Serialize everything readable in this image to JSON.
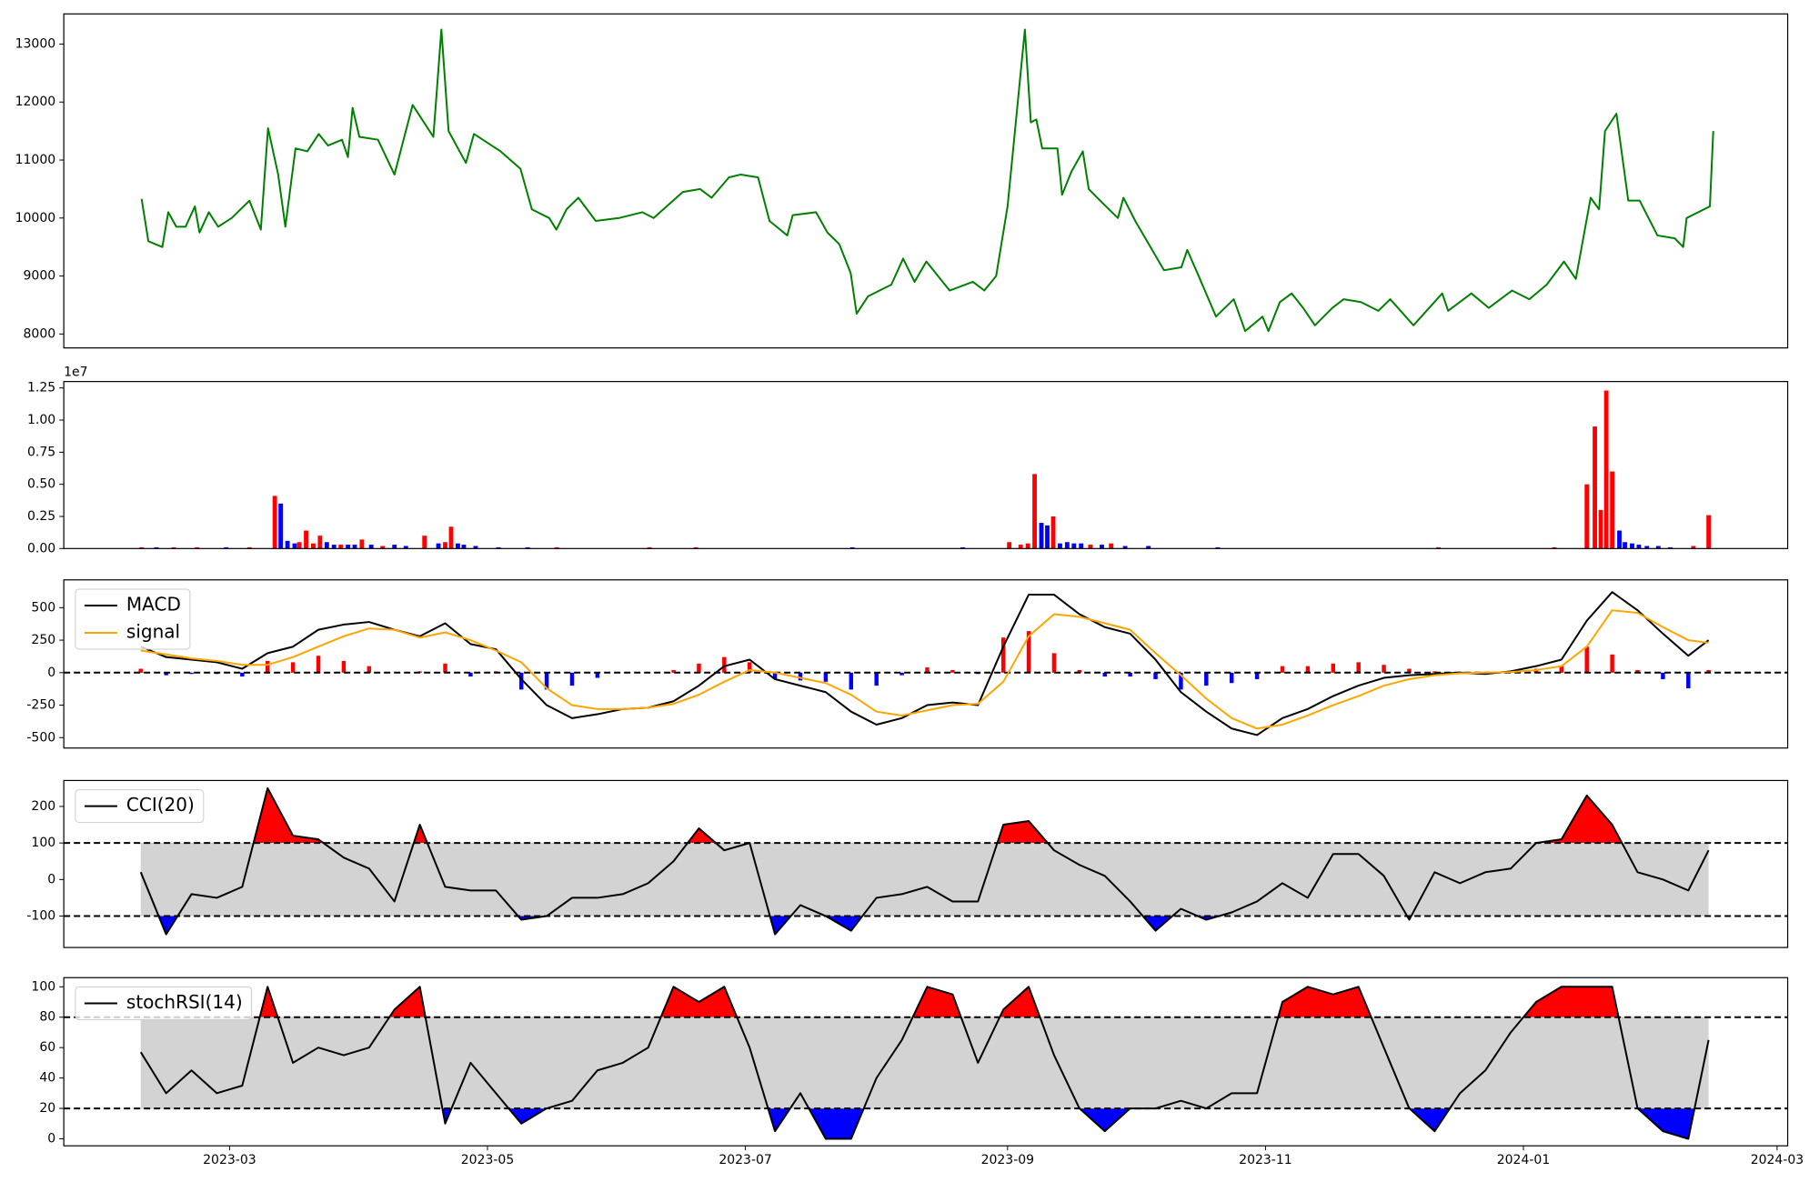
{
  "chart_data": [
    {
      "type": "line",
      "xlim": [
        19.8,
        427.5
      ],
      "ylim": [
        7760,
        13520
      ],
      "yticks": [
        8000,
        9000,
        10000,
        11000,
        12000,
        13000
      ],
      "x": [
        38.2,
        39.8,
        43.1,
        44.5,
        46.4,
        48.6,
        50.8,
        51.9,
        54.1,
        56.3,
        59.5,
        63.7,
        66.4,
        68.1,
        70.5,
        72.2,
        74.6,
        77.4,
        80.1,
        82.3,
        85.6,
        87.0,
        88.1,
        89.7,
        94.1,
        98.0,
        102.3,
        107.2,
        109.1,
        110.8,
        114.9,
        116.8,
        123.1,
        127.8,
        130.5,
        134.6,
        136.3,
        138.7,
        141.5,
        145.6,
        151.1,
        156.6,
        159.3,
        166.2,
        170.3,
        173.0,
        177.1,
        179.9,
        184.0,
        186.7,
        190.9,
        192.2,
        197.7,
        200.4,
        203.2,
        205.9,
        207.3,
        210.0,
        215.5,
        218.3,
        221.0,
        223.8,
        229.3,
        234.8,
        237.5,
        240.3,
        243.0,
        247.1,
        248.5,
        249.8,
        251.2,
        254.8,
        255.9,
        258.1,
        260.8,
        262.2,
        264.9,
        269.1,
        270.4,
        273.2,
        277.2,
        280.0,
        284.1,
        285.5,
        288.2,
        292.3,
        296.5,
        299.2,
        303.3,
        304.7,
        307.4,
        310.2,
        312.9,
        315.7,
        319.8,
        322.5,
        326.6,
        330.7,
        333.5,
        339.0,
        345.8,
        347.2,
        352.7,
        356.8,
        362.3,
        366.4,
        370.5,
        374.6,
        377.4,
        380.9,
        382.9,
        384.3,
        387.0,
        388.4,
        389.8,
        392.5,
        396.7,
        400.8,
        402.8,
        403.6,
        409.1,
        409.9
      ],
      "series": [
        {
          "color": "#008000",
          "values": [
            10330,
            9600,
            9500,
            10100,
            9850,
            9850,
            10200,
            9750,
            10100,
            9850,
            10000,
            10300,
            9800,
            11550,
            10750,
            9850,
            11200,
            11150,
            11450,
            11250,
            11350,
            11050,
            11900,
            11400,
            11350,
            10750,
            11950,
            11400,
            13250,
            11500,
            10950,
            11450,
            11150,
            10850,
            10150,
            10000,
            9800,
            10150,
            10350,
            9950,
            10000,
            10100,
            10000,
            10450,
            10500,
            10350,
            10700,
            10750,
            10700,
            9950,
            9700,
            10050,
            10100,
            9750,
            9550,
            9050,
            8350,
            8650,
            8850,
            9300,
            8900,
            9250,
            8750,
            8900,
            8750,
            9000,
            10200,
            13250,
            11650,
            11700,
            11200,
            11200,
            10400,
            10800,
            11150,
            10500,
            10300,
            10000,
            10350,
            9950,
            9450,
            9100,
            9150,
            9450,
            9000,
            8300,
            8600,
            8050,
            8300,
            8050,
            8550,
            8700,
            8450,
            8150,
            8450,
            8600,
            8550,
            8400,
            8600,
            8150,
            8700,
            8400,
            8700,
            8450,
            8750,
            8600,
            8850,
            9250,
            8950,
            10350,
            10150,
            11500,
            11800,
            11050,
            10300,
            10300,
            9700,
            9650,
            9500,
            10000,
            10200,
            11500
          ]
        }
      ]
    },
    {
      "type": "bar",
      "xlim": [
        19.8,
        427.5
      ],
      "ylim": [
        0,
        13000000
      ],
      "offset_text": "1e7",
      "yticks": [
        {
          "value": 0,
          "label": "0.00"
        },
        {
          "value": 2500000,
          "label": "0.25"
        },
        {
          "value": 5000000,
          "label": "0.50"
        },
        {
          "value": 7500000,
          "label": "0.75"
        },
        {
          "value": 10000000,
          "label": "1.00"
        },
        {
          "value": 12500000,
          "label": "1.25"
        }
      ],
      "x": [
        38.2,
        41.7,
        45.8,
        51.3,
        58.2,
        63.7,
        69.7,
        71.1,
        72.7,
        74.4,
        75.5,
        77.1,
        78.8,
        80.4,
        82.0,
        83.7,
        85.3,
        87.0,
        88.6,
        90.3,
        92.5,
        95.2,
        98.0,
        100.7,
        105.1,
        108.4,
        110.0,
        111.4,
        113.0,
        114.4,
        117.2,
        122.6,
        129.5,
        136.4,
        158.3,
        169.3,
        206.3,
        232.4,
        243.4,
        246.1,
        247.8,
        249.4,
        251.0,
        252.4,
        253.8,
        255.4,
        257.1,
        258.7,
        260.4,
        262.6,
        265.3,
        267.5,
        270.8,
        276.3,
        292.7,
        344.9,
        372.3,
        380.0,
        381.9,
        383.3,
        384.6,
        386.0,
        387.7,
        389.0,
        390.7,
        392.3,
        394.2,
        396.9,
        399.7,
        405.2,
        408.8
      ],
      "values": [
        100000,
        100000,
        100000,
        100000,
        100000,
        100000,
        4100000,
        3500000,
        600000,
        400000,
        500000,
        1400000,
        400000,
        1000000,
        500000,
        300000,
        300000,
        300000,
        300000,
        700000,
        300000,
        200000,
        300000,
        200000,
        1000000,
        400000,
        500000,
        1700000,
        400000,
        300000,
        200000,
        100000,
        100000,
        100000,
        100000,
        100000,
        100000,
        100000,
        500000,
        300000,
        400000,
        5800000,
        2000000,
        1800000,
        2500000,
        400000,
        500000,
        400000,
        400000,
        300000,
        300000,
        400000,
        200000,
        200000,
        100000,
        100000,
        100000,
        5000000,
        9500000,
        3000000,
        12300000,
        6000000,
        1400000,
        500000,
        400000,
        300000,
        200000,
        200000,
        100000,
        200000,
        2600000
      ],
      "colors": [
        "red",
        "blue",
        "red",
        "red",
        "blue",
        "red",
        "red",
        "blue",
        "blue",
        "blue",
        "red",
        "red",
        "red",
        "red",
        "blue",
        "blue",
        "red",
        "blue",
        "blue",
        "red",
        "blue",
        "red",
        "blue",
        "blue",
        "red",
        "blue",
        "red",
        "red",
        "blue",
        "blue",
        "blue",
        "blue",
        "blue",
        "red",
        "red",
        "red",
        "blue",
        "blue",
        "red",
        "red",
        "red",
        "red",
        "blue",
        "blue",
        "red",
        "blue",
        "blue",
        "blue",
        "blue",
        "red",
        "blue",
        "red",
        "blue",
        "blue",
        "blue",
        "red",
        "red",
        "red",
        "red",
        "red",
        "red",
        "red",
        "blue",
        "blue",
        "blue",
        "blue",
        "blue",
        "blue",
        "blue",
        "red",
        "red"
      ]
    },
    {
      "type": "line",
      "xlim": [
        19.8,
        427.5
      ],
      "ylim": [
        -580,
        714
      ],
      "yticks": [
        -500,
        -250,
        0,
        250,
        500
      ],
      "hlines": [
        0
      ],
      "legend": "upper left",
      "x": [
        38,
        44,
        50,
        56,
        62,
        68,
        74,
        80,
        86,
        92,
        98,
        104,
        110,
        116,
        122,
        128,
        134,
        140,
        146,
        152,
        158,
        164,
        170,
        176,
        182,
        188,
        194,
        200,
        206,
        212,
        218,
        224,
        230,
        236,
        242,
        248,
        254,
        260,
        266,
        272,
        278,
        284,
        290,
        296,
        302,
        308,
        314,
        320,
        326,
        332,
        338,
        344,
        350,
        356,
        362,
        368,
        374,
        380,
        386,
        392,
        398,
        404,
        408.8
      ],
      "series": [
        {
          "name": "MACD",
          "color": "#000000",
          "values": [
            200,
            120,
            100,
            80,
            30,
            150,
            200,
            330,
            370,
            390,
            330,
            280,
            380,
            220,
            180,
            -50,
            -250,
            -350,
            -320,
            -280,
            -270,
            -220,
            -100,
            50,
            100,
            -50,
            -100,
            -150,
            -300,
            -400,
            -350,
            -250,
            -230,
            -250,
            200,
            600,
            600,
            450,
            350,
            300,
            100,
            -150,
            -300,
            -430,
            -480,
            -350,
            -280,
            -180,
            -100,
            -40,
            -20,
            -10,
            0,
            -10,
            10,
            50,
            100,
            400,
            620,
            480,
            300,
            130,
            250
          ]
        },
        {
          "name": "signal",
          "color": "#ffa500",
          "values": [
            170,
            140,
            110,
            90,
            60,
            60,
            120,
            200,
            280,
            340,
            330,
            270,
            310,
            250,
            170,
            80,
            -120,
            -250,
            -280,
            -280,
            -270,
            -240,
            -170,
            -70,
            20,
            0,
            -40,
            -80,
            -170,
            -300,
            -330,
            -290,
            -250,
            -240,
            -70,
            280,
            450,
            430,
            380,
            330,
            150,
            -20,
            -200,
            -350,
            -430,
            -400,
            -330,
            -250,
            -180,
            -100,
            -50,
            -20,
            -5,
            0,
            5,
            20,
            50,
            200,
            480,
            460,
            350,
            250,
            230
          ]
        }
      ],
      "histogram": {
        "positive_color": "#ff0000",
        "negative_color": "#0000ff",
        "values": [
          30,
          -20,
          -10,
          -10,
          -30,
          90,
          80,
          130,
          90,
          50,
          0,
          10,
          70,
          -30,
          10,
          -130,
          -130,
          -100,
          -40,
          0,
          0,
          20,
          70,
          120,
          80,
          -50,
          -60,
          -70,
          -130,
          -100,
          -20,
          40,
          20,
          -10,
          270,
          320,
          150,
          20,
          -30,
          -30,
          -50,
          -130,
          -100,
          -80,
          -50,
          50,
          50,
          70,
          80,
          60,
          30,
          10,
          5,
          -10,
          5,
          30,
          50,
          200,
          140,
          20,
          -50,
          -120,
          20
        ]
      }
    },
    {
      "type": "line",
      "xlim": [
        19.8,
        427.5
      ],
      "ylim": [
        -186,
        271
      ],
      "yticks": [
        -100,
        0,
        100,
        200
      ],
      "hlines": [
        100,
        -100
      ],
      "legend": "upper left",
      "band_color": "#d3d3d3",
      "above_color": "#ff0000",
      "below_color": "#0000ff",
      "x": [
        38,
        44,
        50,
        56,
        62,
        68,
        74,
        80,
        86,
        92,
        98,
        104,
        110,
        116,
        122,
        128,
        134,
        140,
        146,
        152,
        158,
        164,
        170,
        176,
        182,
        188,
        194,
        200,
        206,
        212,
        218,
        224,
        230,
        236,
        242,
        248,
        254,
        260,
        266,
        272,
        278,
        284,
        290,
        296,
        302,
        308,
        314,
        320,
        326,
        332,
        338,
        344,
        350,
        356,
        362,
        368,
        374,
        380,
        386,
        392,
        398,
        404,
        408.8
      ],
      "series": [
        {
          "name": "CCI(20)",
          "color": "#000000",
          "values": [
            20,
            -150,
            -40,
            -50,
            -20,
            250,
            120,
            110,
            60,
            30,
            -60,
            150,
            -20,
            -30,
            -30,
            -110,
            -100,
            -50,
            -50,
            -40,
            -10,
            50,
            140,
            80,
            100,
            -150,
            -70,
            -100,
            -140,
            -50,
            -40,
            -20,
            -60,
            -60,
            150,
            160,
            80,
            40,
            10,
            -60,
            -140,
            -80,
            -110,
            -90,
            -60,
            -10,
            -50,
            70,
            70,
            10,
            -110,
            20,
            -10,
            20,
            30,
            100,
            110,
            230,
            150,
            20,
            0,
            -30,
            80
          ]
        }
      ]
    },
    {
      "type": "line",
      "xlim": [
        19.8,
        427.5
      ],
      "ylim": [
        -4.6,
        106
      ],
      "yticks": [
        0,
        20,
        40,
        60,
        80,
        100
      ],
      "hlines": [
        80,
        20
      ],
      "legend": "upper left",
      "band_color": "#d3d3d3",
      "above_color": "#ff0000",
      "below_color": "#0000ff",
      "xticks": [
        {
          "value": 59,
          "label": "2023-03"
        },
        {
          "value": 120,
          "label": "2023-05"
        },
        {
          "value": 181,
          "label": "2023-07"
        },
        {
          "value": 243,
          "label": "2023-09"
        },
        {
          "value": 304,
          "label": "2023-11"
        },
        {
          "value": 365,
          "label": "2024-01"
        },
        {
          "value": 425,
          "label": "2024-03"
        }
      ],
      "x": [
        38,
        44,
        50,
        56,
        62,
        68,
        74,
        80,
        86,
        92,
        98,
        104,
        110,
        116,
        122,
        128,
        134,
        140,
        146,
        152,
        158,
        164,
        170,
        176,
        182,
        188,
        194,
        200,
        206,
        212,
        218,
        224,
        230,
        236,
        242,
        248,
        254,
        260,
        266,
        272,
        278,
        284,
        290,
        296,
        302,
        308,
        314,
        320,
        326,
        332,
        338,
        344,
        350,
        356,
        362,
        368,
        374,
        380,
        386,
        392,
        398,
        404,
        408.8
      ],
      "series": [
        {
          "name": "stochRSI(14)",
          "color": "#000000",
          "values": [
            57,
            30,
            45,
            30,
            35,
            100,
            50,
            60,
            55,
            60,
            85,
            100,
            10,
            50,
            30,
            10,
            20,
            25,
            45,
            50,
            60,
            100,
            90,
            100,
            60,
            5,
            30,
            0,
            0,
            40,
            65,
            100,
            95,
            50,
            85,
            100,
            55,
            20,
            5,
            20,
            20,
            25,
            20,
            30,
            30,
            90,
            100,
            95,
            100,
            60,
            20,
            5,
            30,
            45,
            70,
            90,
            100,
            100,
            100,
            20,
            5,
            0,
            65
          ]
        }
      ]
    }
  ]
}
